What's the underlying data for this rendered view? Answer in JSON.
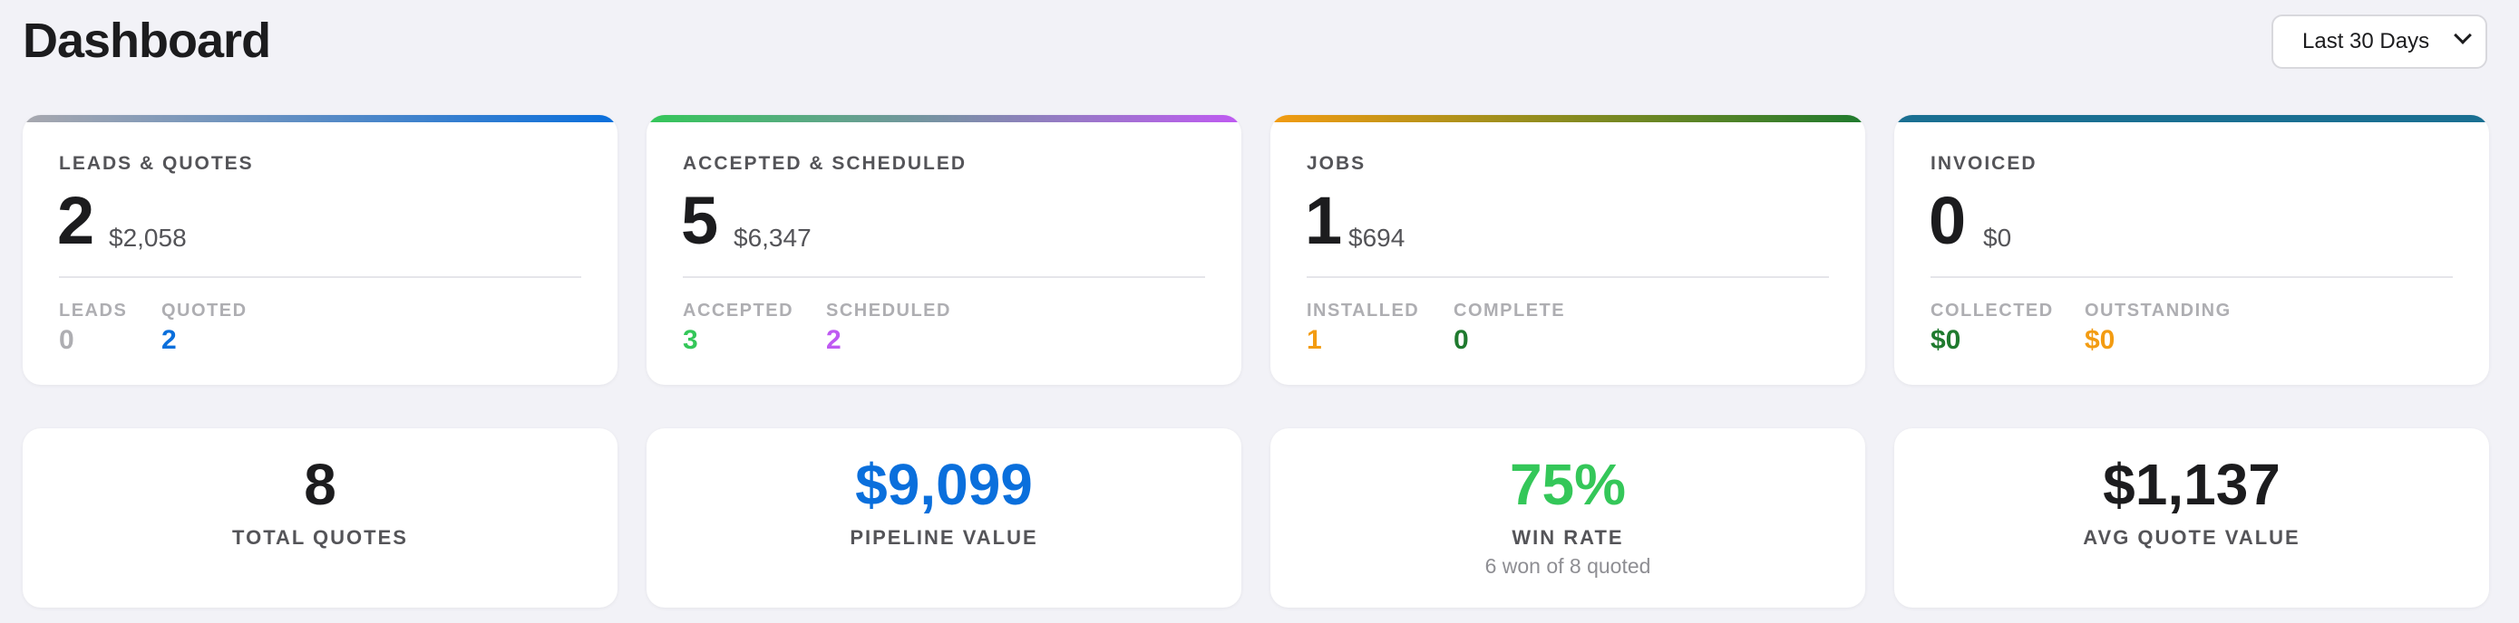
{
  "header": {
    "title": "Dashboard",
    "range_select": {
      "value": "Last 30 Days"
    }
  },
  "colors": {
    "blue": "#0a6fdc",
    "green": "#34c759",
    "dark_green": "#1f7a2e",
    "purple": "#bf5af2",
    "orange": "#f39c12",
    "gray": "#aeaeb2",
    "teal": "#1a6f92"
  },
  "pipeline": [
    {
      "label": "LEADS & QUOTES",
      "count": "2",
      "amount": "$2,058",
      "sub": [
        {
          "label": "LEADS",
          "value": "0"
        },
        {
          "label": "QUOTED",
          "value": "2"
        }
      ]
    },
    {
      "label": "ACCEPTED & SCHEDULED",
      "count": "5",
      "amount": "$6,347",
      "sub": [
        {
          "label": "ACCEPTED",
          "value": "3"
        },
        {
          "label": "SCHEDULED",
          "value": "2"
        }
      ]
    },
    {
      "label": "JOBS",
      "count": "1",
      "amount": "$694",
      "sub": [
        {
          "label": "INSTALLED",
          "value": "1"
        },
        {
          "label": "COMPLETE",
          "value": "0"
        }
      ]
    },
    {
      "label": "INVOICED",
      "count": "0",
      "amount": "$0",
      "sub": [
        {
          "label": "COLLECTED",
          "value": "$0"
        },
        {
          "label": "OUTSTANDING",
          "value": "$0"
        }
      ]
    }
  ],
  "stats": [
    {
      "value": "8",
      "label": "TOTAL QUOTES"
    },
    {
      "value": "$9,099",
      "label": "PIPELINE VALUE"
    },
    {
      "value": "75%",
      "label": "WIN RATE",
      "note": "6 won of 8 quoted"
    },
    {
      "value": "$1,137",
      "label": "AVG QUOTE VALUE"
    }
  ]
}
